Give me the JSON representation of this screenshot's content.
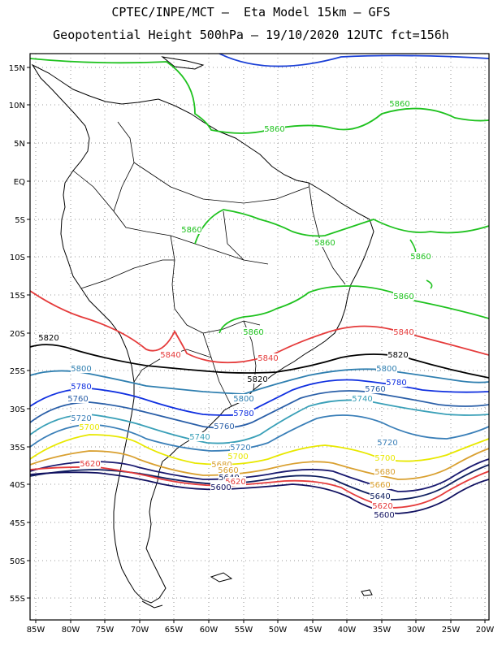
{
  "header": {
    "line1": "CPTEC/INPE/MCT –  Eta Model 15km – GFS",
    "line2": "Geopotential Height 500hPa – 19/10/2020 12UTC fct=156h"
  },
  "axes": {
    "lat_labels": [
      "15N",
      "10N",
      "5N",
      "EQ",
      "5S",
      "10S",
      "15S",
      "20S",
      "25S",
      "30S",
      "35S",
      "40S",
      "45S",
      "50S",
      "55S"
    ],
    "lon_labels": [
      "85W",
      "80W",
      "75W",
      "70W",
      "65W",
      "60W",
      "55W",
      "50W",
      "45W",
      "40W",
      "35W",
      "30W",
      "25W",
      "20W"
    ]
  },
  "colors": {
    "c5880": "#1a3fd6",
    "c5860": "#1fc21f",
    "c5840": "#e53b3b",
    "c5820": "#000000",
    "c5800": "#2f7fb0",
    "c5780": "#1030e0",
    "c5760": "#2a5fa8",
    "c5740": "#3aa0b8",
    "c5720": "#3a7fb8",
    "c5700": "#e8e800",
    "c5680": "#d9a030",
    "c5660": "#1a1a70",
    "c5640": "#102060",
    "c5620": "#e53b3b",
    "c5600": "#101060"
  },
  "contour_labels": [
    {
      "id": "l5860a",
      "text": "5860"
    },
    {
      "id": "l5860b",
      "text": "5860"
    },
    {
      "id": "l5860c",
      "text": "5860"
    },
    {
      "id": "l5860d",
      "text": "5860"
    },
    {
      "id": "l5860e",
      "text": "5860"
    },
    {
      "id": "l5860f",
      "text": "5860"
    },
    {
      "id": "l5860g",
      "text": "5860"
    },
    {
      "id": "l5840a",
      "text": "5840"
    },
    {
      "id": "l5840b",
      "text": "5840"
    },
    {
      "id": "l5840c",
      "text": "5840"
    },
    {
      "id": "l5820a",
      "text": "5820"
    },
    {
      "id": "l5820b",
      "text": "5820"
    },
    {
      "id": "l5820c",
      "text": "5820"
    },
    {
      "id": "l5800a",
      "text": "5800"
    },
    {
      "id": "l5800b",
      "text": "5800"
    },
    {
      "id": "l5800c",
      "text": "5800"
    },
    {
      "id": "l5780a",
      "text": "5780"
    },
    {
      "id": "l5780b",
      "text": "5780"
    },
    {
      "id": "l5780c",
      "text": "5780"
    },
    {
      "id": "l5760a",
      "text": "5760"
    },
    {
      "id": "l5760b",
      "text": "5760"
    },
    {
      "id": "l5760c",
      "text": "5760"
    },
    {
      "id": "l5740a",
      "text": "5740"
    },
    {
      "id": "l5740b",
      "text": "5740"
    },
    {
      "id": "l5720a",
      "text": "5720"
    },
    {
      "id": "l5720b",
      "text": "5720"
    },
    {
      "id": "l5720c",
      "text": "5720"
    },
    {
      "id": "l5700a",
      "text": "5700"
    },
    {
      "id": "l5700b",
      "text": "5700"
    },
    {
      "id": "l5700c",
      "text": "5700"
    },
    {
      "id": "l5680a",
      "text": "5680"
    },
    {
      "id": "l5680b",
      "text": "5680"
    },
    {
      "id": "l5660a",
      "text": "5660"
    },
    {
      "id": "l5660b",
      "text": "5660"
    },
    {
      "id": "l5640a",
      "text": "5640"
    },
    {
      "id": "l5640b",
      "text": "5640"
    },
    {
      "id": "l5620a",
      "text": "5620"
    },
    {
      "id": "l5620b",
      "text": "5620"
    },
    {
      "id": "l5620c",
      "text": "5620"
    },
    {
      "id": "l5600a",
      "text": "5600"
    },
    {
      "id": "l5600b",
      "text": "5600"
    }
  ]
}
